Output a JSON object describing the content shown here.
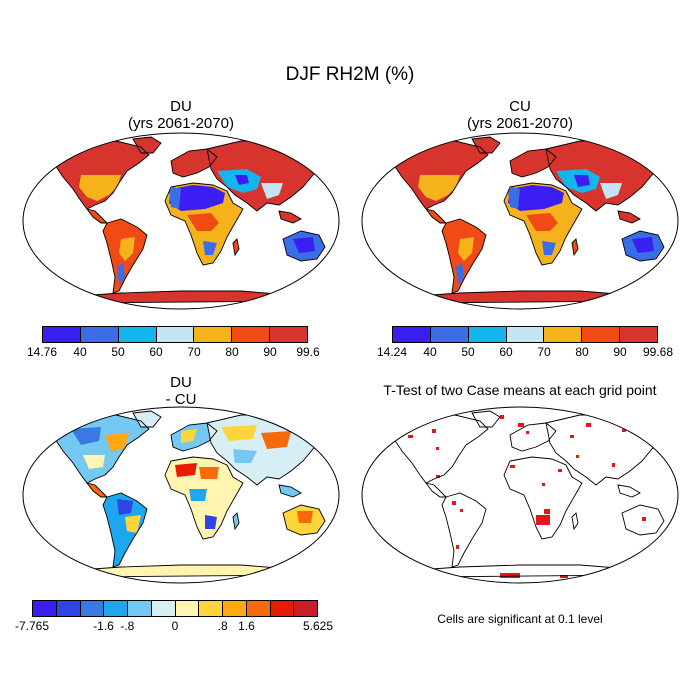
{
  "title": "DJF RH2M (%)",
  "panels": {
    "du": {
      "title_line1": "DU",
      "title_line2": "(yrs 2061-2070)",
      "colorbar": {
        "colors": [
          "#3b1ef2",
          "#3a6ee6",
          "#14b4ec",
          "#c4e6f4",
          "#f6b21a",
          "#f24a14",
          "#d8342e"
        ],
        "labels": [
          "14.76",
          "40",
          "50",
          "60",
          "70",
          "80",
          "90",
          "99.6"
        ]
      }
    },
    "cu": {
      "title_line1": "CU",
      "title_line2": "(yrs 2061-2070)",
      "colorbar": {
        "colors": [
          "#3b1ef2",
          "#3a6ee6",
          "#14b4ec",
          "#c4e6f4",
          "#f6b21a",
          "#f24a14",
          "#d8342e"
        ],
        "labels": [
          "14.24",
          "40",
          "50",
          "60",
          "70",
          "80",
          "90",
          "99.68"
        ]
      }
    },
    "diff": {
      "title_line1": "DU",
      "title_line2": "- CU",
      "colorbar": {
        "colors": [
          "#3a1ef0",
          "#2f44e4",
          "#3a78e6",
          "#1ea6ee",
          "#74c8f2",
          "#d6eef4",
          "#fff4b0",
          "#ffd53a",
          "#ffa812",
          "#f86a08",
          "#e81c06",
          "#c81e2a"
        ],
        "labels": [
          "-7.765",
          "-1.6",
          "-.8",
          "0",
          ".8",
          "1.6",
          "5.625"
        ]
      }
    },
    "ttest": {
      "title": "T-Test of two Case means at each grid point",
      "note": "Cells are significant at 0.1 level",
      "sig_color": "#e8141c"
    }
  }
}
